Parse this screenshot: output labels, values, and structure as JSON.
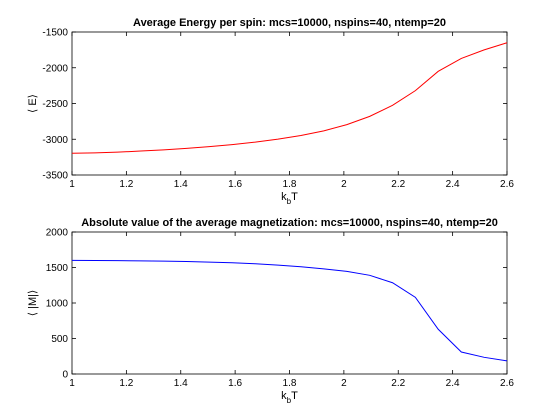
{
  "chart_data": [
    {
      "type": "line",
      "title": "Average Energy per spin: mcs=10000, nspins=40, ntemp=20",
      "xlabel": "k",
      "xlabel_sub": "b",
      "xlabel_suffix": "T",
      "ylabel": "⟨ E⟩",
      "xlim": [
        1,
        2.6
      ],
      "ylim": [
        -3500,
        -1500
      ],
      "xticks": [
        1,
        1.2,
        1.4,
        1.6,
        1.8,
        2,
        2.2,
        2.4,
        2.6
      ],
      "xtick_labels": [
        "1",
        "1.2",
        "1.4",
        "1.6",
        "1.8",
        "2",
        "2.2",
        "2.4",
        "2.6"
      ],
      "yticks": [
        -3500,
        -3000,
        -2500,
        -2000,
        -1500
      ],
      "ytick_labels": [
        "-3500",
        "-3000",
        "-2500",
        "-2000",
        "-1500"
      ],
      "series": [
        {
          "name": "E",
          "color": "#ff0000",
          "x": [
            1.0,
            1.084,
            1.168,
            1.253,
            1.337,
            1.421,
            1.505,
            1.589,
            1.674,
            1.758,
            1.842,
            1.926,
            2.011,
            2.095,
            2.179,
            2.263,
            2.347,
            2.432,
            2.516,
            2.6
          ],
          "y": [
            -3195,
            -3190,
            -3180,
            -3165,
            -3148,
            -3128,
            -3103,
            -3075,
            -3040,
            -2998,
            -2948,
            -2883,
            -2795,
            -2680,
            -2525,
            -2320,
            -2050,
            -1870,
            -1750,
            -1650
          ]
        }
      ]
    },
    {
      "type": "line",
      "title": "Absolute value of the average magnetization: mcs=10000, nspins=40, ntemp=20",
      "xlabel": "k",
      "xlabel_sub": "b",
      "xlabel_suffix": "T",
      "ylabel": "⟨ |M|⟩",
      "xlim": [
        1,
        2.6
      ],
      "ylim": [
        0,
        2000
      ],
      "xticks": [
        1,
        1.2,
        1.4,
        1.6,
        1.8,
        2,
        2.2,
        2.4,
        2.6
      ],
      "xtick_labels": [
        "1",
        "1.2",
        "1.4",
        "1.6",
        "1.8",
        "2",
        "2.2",
        "2.4",
        "2.6"
      ],
      "yticks": [
        0,
        500,
        1000,
        1500,
        2000
      ],
      "ytick_labels": [
        "0",
        "500",
        "1000",
        "1500",
        "2000"
      ],
      "series": [
        {
          "name": "|M|",
          "color": "#0000ff",
          "x": [
            1.0,
            1.084,
            1.168,
            1.253,
            1.337,
            1.421,
            1.505,
            1.589,
            1.674,
            1.758,
            1.842,
            1.926,
            2.011,
            2.095,
            2.179,
            2.263,
            2.347,
            2.432,
            2.516,
            2.6
          ],
          "y": [
            1600,
            1599,
            1597,
            1594,
            1590,
            1584,
            1576,
            1566,
            1552,
            1534,
            1510,
            1480,
            1445,
            1390,
            1285,
            1080,
            630,
            310,
            235,
            185
          ]
        }
      ]
    }
  ]
}
